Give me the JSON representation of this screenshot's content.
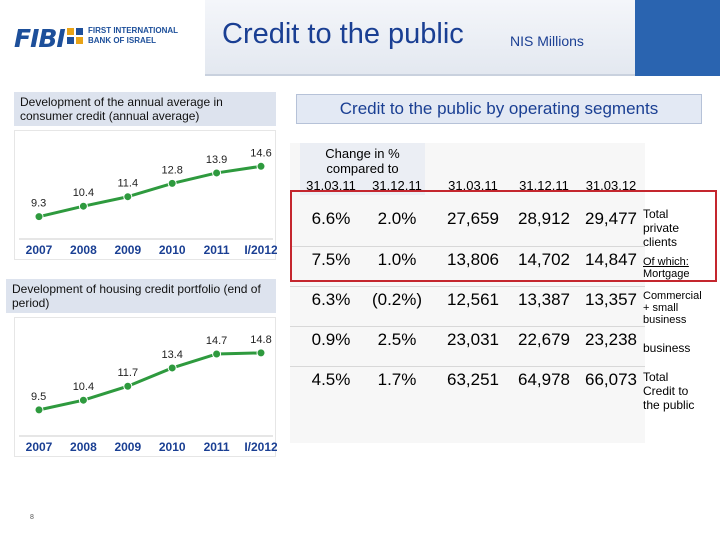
{
  "header": {
    "logo_word": "FIBI",
    "logo_line1": "FIRST INTERNATIONAL",
    "logo_line2": "BANK OF ISRAEL",
    "title": "Credit to the public",
    "subtitle": "NIS Millions"
  },
  "left": {
    "consumer_title": "Development of the annual average in consumer credit (annual average)",
    "housing_title": "Development of housing credit portfolio (end of period)"
  },
  "right": {
    "title": "Credit to the public by operating segments",
    "change_header": "Change in % compared to",
    "col_headers": [
      "31.03.11",
      "31.12.11",
      "31.03.11",
      "31.12.11",
      "31.03.12"
    ],
    "rows": [
      {
        "chg1": "6.6%",
        "chg2": "2.0%",
        "v1": "27,659",
        "v2": "28,912",
        "v3": "29,477",
        "segment": "Total private clients",
        "segment_lines": [
          "Total",
          "private",
          "clients"
        ]
      },
      {
        "chg1": "7.5%",
        "chg2": "1.0%",
        "v1": "13,806",
        "v2": "14,702",
        "v3": "14,847",
        "segment": "Of which: Mortgage",
        "segment_lines": [
          "Of which:",
          "Mortgage"
        ]
      },
      {
        "chg1": "6.3%",
        "chg2": "(0.2%)",
        "v1": "12,561",
        "v2": "13,387",
        "v3": "13,357",
        "segment": "Commercial + small business",
        "segment_lines": [
          "Commercial",
          "+ small",
          "business"
        ]
      },
      {
        "chg1": "0.9%",
        "chg2": "2.5%",
        "v1": "23,031",
        "v2": "22,679",
        "v3": "23,238",
        "segment": "business",
        "segment_lines": [
          "business"
        ]
      },
      {
        "chg1": "4.5%",
        "chg2": "1.7%",
        "v1": "63,251",
        "v2": "64,978",
        "v3": "66,073",
        "segment": "Total Credit to the public",
        "segment_lines": [
          "Total",
          "Credit to",
          "the public"
        ]
      }
    ]
  },
  "page_number": "8",
  "colors": {
    "line": "#2e9a3e",
    "header_blue": "#1a3f93",
    "highlight": "#c4262e"
  },
  "chart_data": [
    {
      "type": "line",
      "title": "Development of the annual average in consumer credit (annual average)",
      "categories": [
        "2007",
        "2008",
        "2009",
        "2010",
        "2011",
        "I/2012"
      ],
      "values": [
        9.3,
        10.4,
        11.4,
        12.8,
        13.9,
        14.6
      ],
      "labels": [
        "9.3",
        "10.4",
        "11.4",
        "12.8",
        "13.9",
        "14.6"
      ],
      "ylim": [
        8,
        16
      ],
      "grid": false
    },
    {
      "type": "line",
      "title": "Development of housing credit portfolio (end of period)",
      "categories": [
        "2007",
        "2008",
        "2009",
        "2010",
        "2011",
        "I/2012"
      ],
      "values": [
        9.5,
        10.4,
        11.7,
        13.4,
        14.7,
        14.8
      ],
      "labels": [
        "9.5",
        "10.4",
        "11.7",
        "13.4",
        "14.7",
        "14.8"
      ],
      "ylim": [
        8,
        16
      ],
      "grid": false
    }
  ]
}
